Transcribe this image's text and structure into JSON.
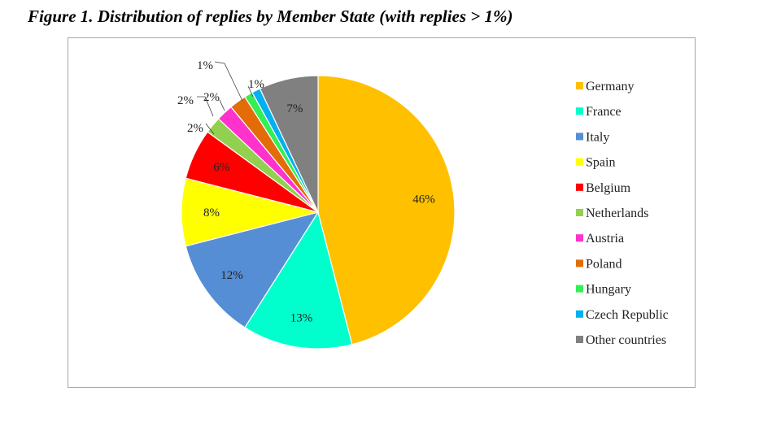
{
  "title": "Figure 1. Distribution of replies by Member State (with replies > 1%)",
  "chart_data": {
    "type": "pie",
    "legend_position": "right",
    "categories": [
      "Germany",
      "France",
      "Italy",
      "Spain",
      "Belgium",
      "Netherlands",
      "Austria",
      "Poland",
      "Hungary",
      "Czech Republic",
      "Other countries"
    ],
    "values": [
      46,
      13,
      12,
      8,
      6,
      2,
      2,
      2,
      1,
      1,
      7
    ],
    "data_labels": [
      "46%",
      "13%",
      "12%",
      "8%",
      "6%",
      "2%",
      "2%",
      "2%",
      "1%",
      "1%",
      "7%"
    ],
    "colors": [
      "#ffc000",
      "#00ffcc",
      "#558ed5",
      "#ffff00",
      "#ff0000",
      "#92d050",
      "#ff33cc",
      "#e36c09",
      "#33ee55",
      "#00b0f0",
      "#808080"
    ]
  }
}
